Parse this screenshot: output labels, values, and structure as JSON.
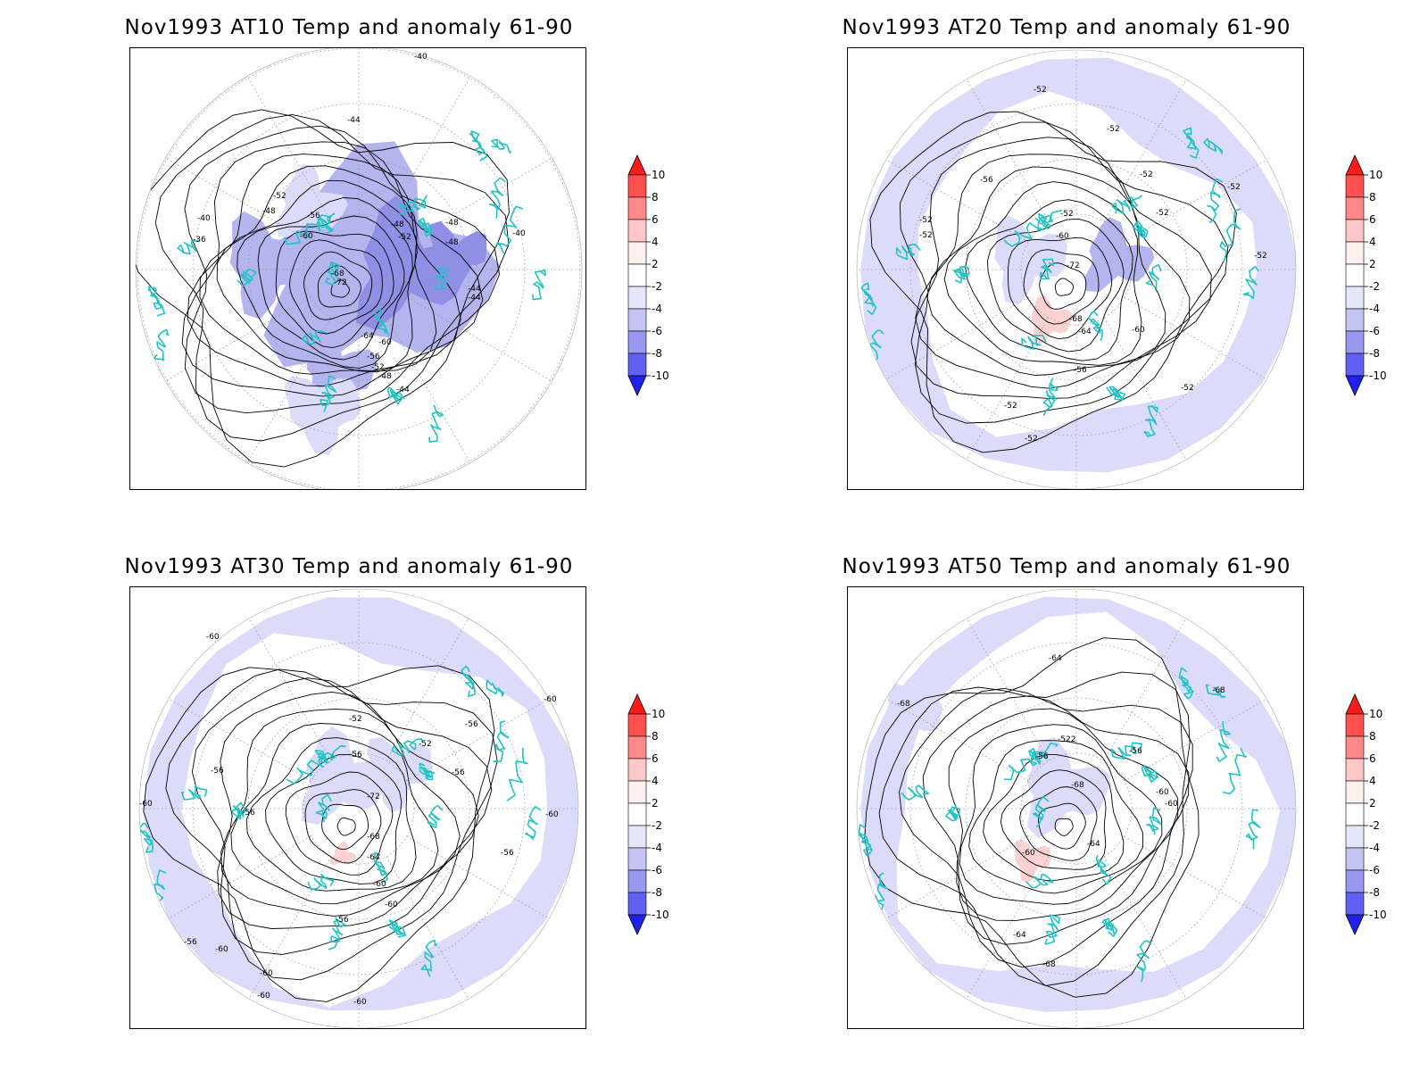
{
  "panels": [
    {
      "title": "Nov1993 AT10 Temp and anomaly 61-90",
      "contour_labels": [
        "-40",
        "-44",
        "-52",
        "-40",
        "-36",
        "-48",
        "-56",
        "-60",
        "-48",
        "-52",
        "-48",
        "-48",
        "-40",
        "-68",
        "-72",
        "-44",
        "-44",
        "-64",
        "-60",
        "-56",
        "-52",
        "-48",
        "-44"
      ]
    },
    {
      "title": "Nov1993 AT20 Temp and anomaly 61-90",
      "contour_labels": [
        "-52",
        "-52",
        "-56",
        "-52",
        "-52",
        "-52",
        "-52",
        "-52",
        "-60",
        "-52",
        "-72",
        "-52",
        "-68",
        "-64",
        "-60",
        "-56",
        "-52",
        "-52",
        "-52"
      ]
    },
    {
      "title": "Nov1993 AT30 Temp and anomaly 61-90",
      "contour_labels": [
        "-60",
        "-60",
        "-52",
        "-56",
        "-60",
        "-56",
        "-56",
        "-52",
        "-56",
        "-56",
        "-60",
        "-60",
        "-72",
        "-68",
        "-64",
        "-56",
        "-60",
        "-56",
        "-56",
        "-60",
        "-60",
        "-60",
        "-60"
      ]
    },
    {
      "title": "Nov1993 AT50 Temp and anomaly 61-90",
      "contour_labels": [
        "-64",
        "-68",
        "-68",
        "-522",
        "-56",
        "-56",
        "-68",
        "-60",
        "-60",
        "-60",
        "-64",
        "-64",
        "-68"
      ]
    }
  ],
  "colorbar": {
    "labels": [
      "10",
      "8",
      "6",
      "4",
      "2",
      "-2",
      "-4",
      "-6",
      "-8",
      "-10"
    ],
    "colors": [
      "#ff1a1a",
      "#ff5050",
      "#ff8888",
      "#ffc8c8",
      "#fff0f0",
      "#ffffff",
      "#e6e6fb",
      "#c4c4f3",
      "#9898f0",
      "#6060f3",
      "#2020f0"
    ]
  },
  "colors": {
    "coastline": "#20c4c4",
    "contour": "#000000",
    "neg_anomaly_light": "#dcdcfa",
    "neg_anomaly_medium": "#b4b4ee",
    "neg_anomaly_strong": "#8f8fe6",
    "pos_anomaly": "#fad2d2"
  }
}
